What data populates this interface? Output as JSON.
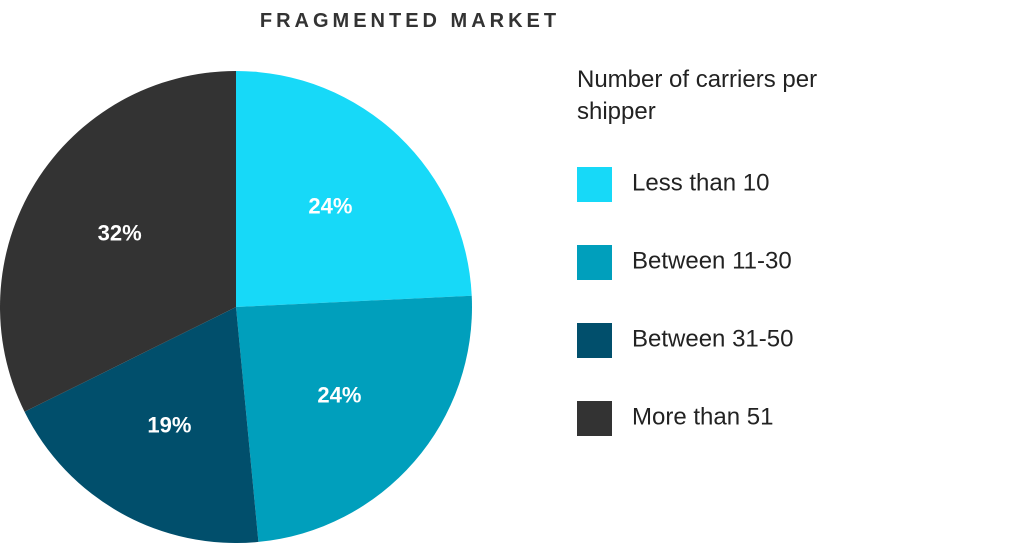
{
  "chart_data": {
    "type": "pie",
    "title": "FRAGMENTED MARKET",
    "legend_title": "Number of carriers per shipper",
    "categories": [
      "Less than 10",
      "Between 11-30",
      "Between 31-50",
      "More than 51"
    ],
    "values": [
      24,
      24,
      19,
      32
    ],
    "value_labels": [
      "24%",
      "24%",
      "19%",
      "32%"
    ],
    "colors": [
      "#17d9f8",
      "#009fbc",
      "#014f6c",
      "#333333"
    ],
    "legend": "right"
  }
}
